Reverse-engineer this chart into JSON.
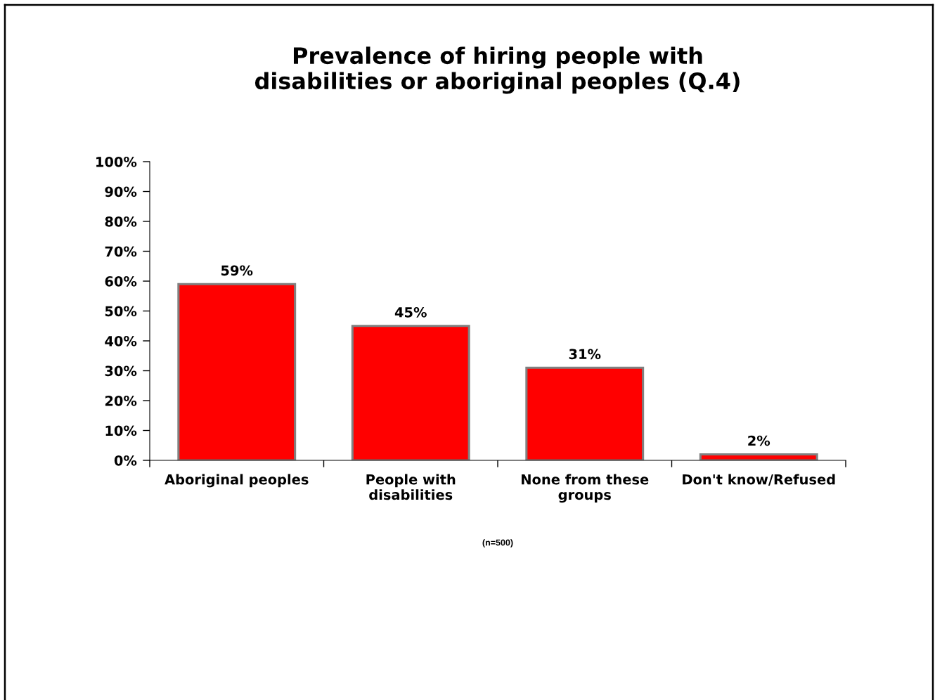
{
  "chart_data": {
    "type": "bar",
    "title": "Prevalence of hiring people with\ndisabilities or aboriginal peoples (Q.4)",
    "categories": [
      "Aboriginal peoples",
      "People with\ndisabilities",
      "None from these\ngroups",
      "Don't know/Refused"
    ],
    "values": [
      59,
      45,
      31,
      2
    ],
    "color": "#ff0000",
    "value_labels": [
      "59%",
      "45%",
      "31%",
      "2%"
    ],
    "ylim": [
      0,
      100
    ],
    "yticks": [
      {
        "value": 0,
        "label": "0%"
      },
      {
        "value": 10,
        "label": "10%"
      },
      {
        "value": 20,
        "label": "20%"
      },
      {
        "value": 30,
        "label": "30%"
      },
      {
        "value": 40,
        "label": "40%"
      },
      {
        "value": 50,
        "label": "50%"
      },
      {
        "value": 60,
        "label": "60%"
      },
      {
        "value": 70,
        "label": "70%"
      },
      {
        "value": 80,
        "label": "80%"
      },
      {
        "value": 90,
        "label": "90%"
      },
      {
        "value": 100,
        "label": "100%"
      }
    ],
    "annotations": [
      "(n=500)"
    ]
  }
}
